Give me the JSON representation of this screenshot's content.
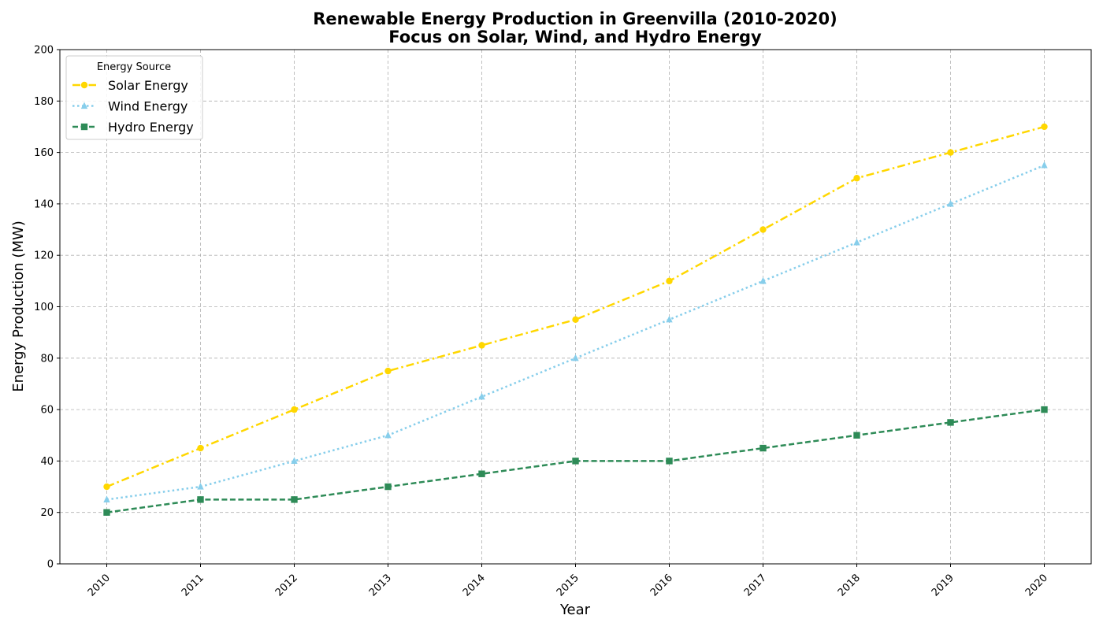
{
  "chart_data": {
    "type": "line",
    "title": "Renewable Energy Production in Greenvilla (2010-2020)",
    "subtitle": "Focus on Solar, Wind, and Hydro Energy",
    "xlabel": "Year",
    "ylabel": "Energy Production (MW)",
    "x": [
      2010,
      2011,
      2012,
      2013,
      2014,
      2015,
      2016,
      2017,
      2018,
      2019,
      2020
    ],
    "ylim": [
      0,
      200
    ],
    "yticks": [
      0,
      20,
      40,
      60,
      80,
      100,
      120,
      140,
      160,
      180,
      200
    ],
    "grid": true,
    "legend": {
      "title": "Energy Source",
      "placement": "top-left"
    },
    "series": [
      {
        "name": "Solar Energy",
        "color": "#FFD700",
        "marker": "circle",
        "linestyle": "dash-dot",
        "values": [
          30,
          45,
          60,
          75,
          85,
          95,
          110,
          130,
          150,
          160,
          170
        ]
      },
      {
        "name": "Wind Energy",
        "color": "#87CEEB",
        "marker": "triangle",
        "linestyle": "dotted",
        "values": [
          25,
          30,
          40,
          50,
          65,
          80,
          95,
          110,
          125,
          140,
          155
        ]
      },
      {
        "name": "Hydro Energy",
        "color": "#2E8B57",
        "marker": "square",
        "linestyle": "dashed",
        "values": [
          20,
          25,
          25,
          30,
          35,
          40,
          40,
          45,
          50,
          55,
          60
        ]
      }
    ]
  }
}
